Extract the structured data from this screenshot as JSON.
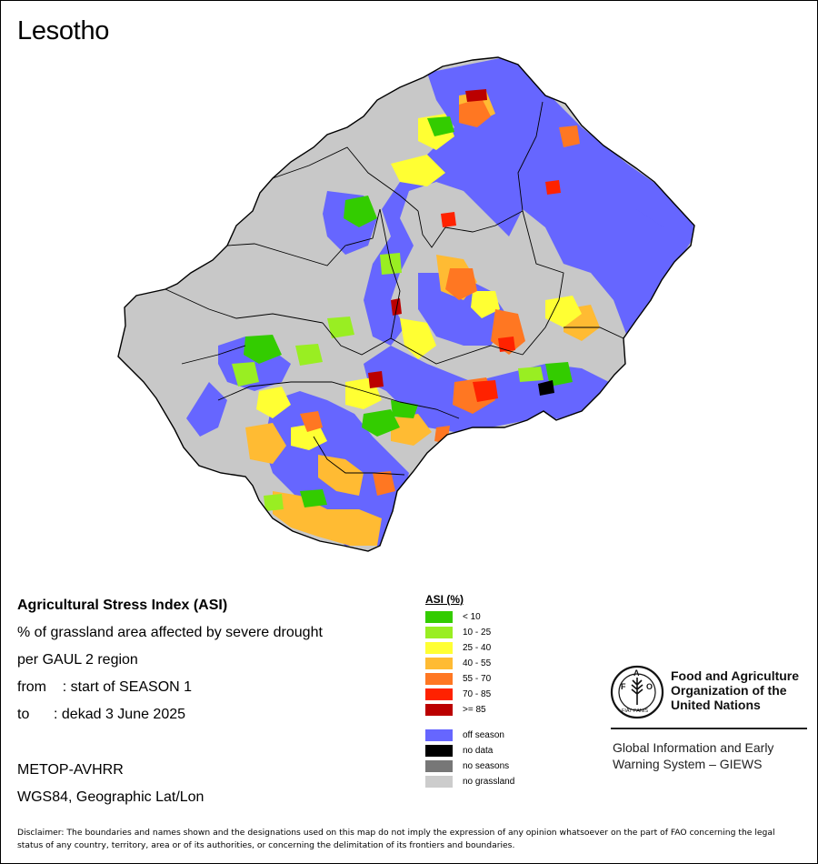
{
  "map": {
    "title": "Lesotho",
    "fill_colors": {
      "no_grassland": "#c8c8c8",
      "off_season": "#6666ff",
      "lt10": "#33cc00",
      "c10_25": "#99ee22",
      "c25_40": "#ffff33",
      "c40_55": "#ffbb33",
      "c55_70": "#ff7722",
      "c70_85": "#ff2200",
      "ge85": "#bb0000",
      "no_data": "#000000"
    }
  },
  "info": {
    "heading": "Agricultural Stress Index (ASI)",
    "line1": "% of grassland area affected by severe drought",
    "line2": "per GAUL 2 region",
    "from_line": "from    : start of SEASON 1",
    "to_line": "to      : dekad 3 June 2025",
    "sensor": "METOP-AVHRR",
    "projection": "WGS84, Geographic Lat/Lon"
  },
  "legend": {
    "title": "ASI (%)",
    "items": [
      {
        "label": "< 10",
        "color": "#33cc00"
      },
      {
        "label": "10 - 25",
        "color": "#99ee22"
      },
      {
        "label": "25 - 40",
        "color": "#ffff33"
      },
      {
        "label": "40 - 55",
        "color": "#ffbb33"
      },
      {
        "label": "55 - 70",
        "color": "#ff7722"
      },
      {
        "label": "70 - 85",
        "color": "#ff2200"
      },
      {
        "label": ">= 85",
        "color": "#bb0000"
      },
      {
        "label": "off season",
        "color": "#6666ff"
      },
      {
        "label": "no data",
        "color": "#000000"
      },
      {
        "label": "no seasons",
        "color": "#777777"
      },
      {
        "label": "no grassland",
        "color": "#cccccc"
      }
    ]
  },
  "organization": {
    "logo_text": "FAO",
    "logo_motto": "FIAT PANIS",
    "name_line1": "Food and Agriculture",
    "name_line2": "Organization of the",
    "name_line3": "United Nations",
    "program_line1": "Global Information and Early",
    "program_line2": "Warning System – GIEWS"
  },
  "disclaimer": "Disclaimer: The boundaries and names shown and the designations used on this map do not imply the expression of any opinion whatsoever on the part of FAO concerning the legal status of any country, territory, area or of its authorities, or concerning the delimitation of its frontiers and boundaries."
}
